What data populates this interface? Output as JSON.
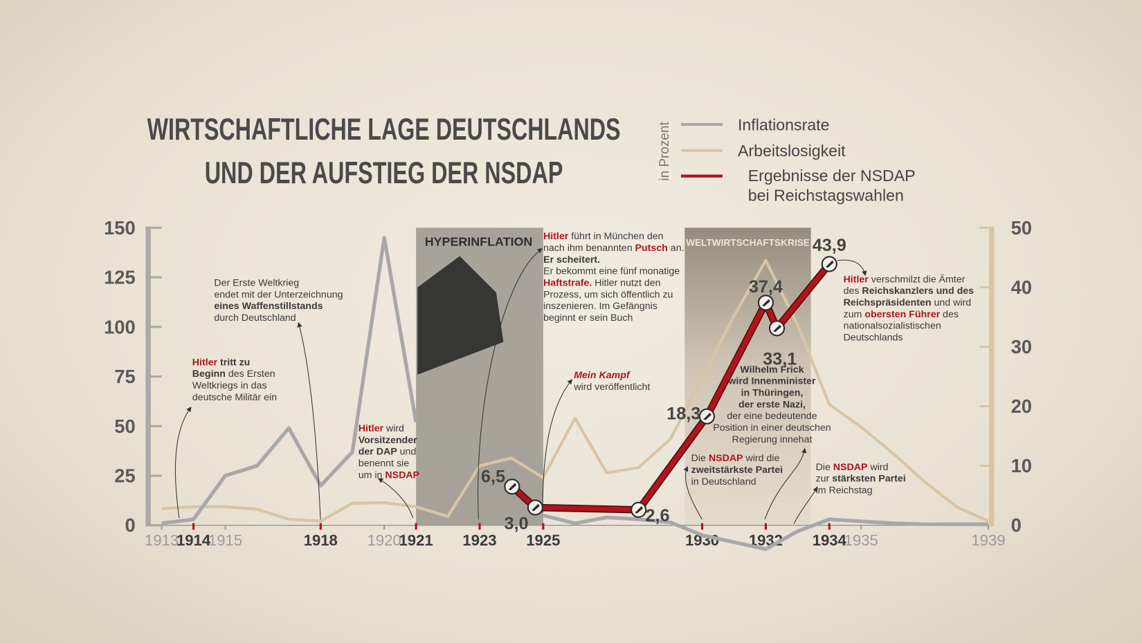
{
  "chart_data": {
    "type": "line",
    "title": [
      "WIRTSCHAFTLICHE LAGE DEUTSCHLANDS",
      "UND DER AUFSTIEG DER NSDAP"
    ],
    "unit_label": "in Prozent",
    "x": [
      1913,
      1914,
      1915,
      1916,
      1917,
      1918,
      1919,
      1920,
      1921,
      1922,
      1923,
      1924,
      1925,
      1926,
      1927,
      1928,
      1929,
      1930,
      1931,
      1932,
      1933,
      1934,
      1935,
      1936,
      1937,
      1938,
      1939
    ],
    "xlim": [
      1913,
      1939
    ],
    "xticks": [
      1913,
      1915,
      1920,
      1935,
      1939
    ],
    "event_ticks": [
      1914,
      1918,
      1921,
      1923,
      1925,
      1930,
      1932,
      1934
    ],
    "ylim": [
      0,
      150
    ],
    "yticks": [
      0,
      25,
      50,
      75,
      100,
      125,
      150
    ],
    "y2lim": [
      0,
      50
    ],
    "y2ticks": [
      0,
      10,
      20,
      30,
      40,
      50
    ],
    "series": [
      {
        "name": "Inflationsrate",
        "color": "#a8a8a8",
        "axis": "y",
        "values": [
          1,
          3,
          25,
          30,
          49,
          20,
          37,
          145,
          52,
          null,
          null,
          null,
          5,
          1,
          4,
          3,
          1.5,
          -5,
          -8.5,
          -12,
          -3,
          3,
          2,
          1,
          0.5,
          0.5,
          0.5
        ]
      },
      {
        "name": "Arbeitslosigkeit",
        "color": "#d9c4a6",
        "axis": "y2",
        "values": [
          2.8,
          3.1,
          3.1,
          2.7,
          1,
          0.7,
          3.7,
          3.8,
          3.1,
          1.5,
          10,
          11.3,
          8,
          18,
          8.8,
          9.7,
          14.5,
          24.7,
          35.2,
          44.5,
          33.7,
          20.3,
          16.5,
          12.1,
          7.3,
          3.1,
          0.7
        ]
      },
      {
        "name": "Ergebnisse der NSDAP bei Reichstagswahlen",
        "color": "#b0141f",
        "axis": "y2",
        "x": [
          1924.02,
          1924.75,
          1928.0,
          1930.15,
          1932.0,
          1932.35,
          1934.0
        ],
        "values": [
          6.5,
          3.0,
          2.6,
          18.3,
          37.4,
          33.1,
          43.9
        ],
        "value_labels": [
          "6,5",
          "3,0",
          "2,6",
          "18,3",
          "37,4",
          "33,1",
          "43,9"
        ]
      }
    ],
    "periods": [
      {
        "label": "HYPERINFLATION",
        "start": 1921,
        "end": 1925
      },
      {
        "label": "WELTWIRTSCHAFTSKRISE",
        "start": 1929.45,
        "end": 1933.42
      }
    ],
    "annotations": [
      {
        "lines": [
          [
            {
              "t": "Hitler",
              "s": "r"
            },
            {
              "t": " tritt zu",
              "s": "b"
            }
          ],
          [
            {
              "t": "Beginn",
              "s": "b"
            },
            {
              "t": " des Ersten",
              "s": "n"
            }
          ],
          [
            {
              "t": "Weltkriegs in das",
              "s": "n"
            }
          ],
          [
            {
              "t": "deutsche Militär ein",
              "s": "n"
            }
          ]
        ]
      },
      {
        "lines": [
          [
            {
              "t": "Der Erste Weltkrieg",
              "s": "n"
            }
          ],
          [
            {
              "t": "endet mit der Unterzeichnung",
              "s": "n"
            }
          ],
          [
            {
              "t": "eines Waffenstillstands",
              "s": "b"
            }
          ],
          [
            {
              "t": "durch Deutschland",
              "s": "n"
            }
          ]
        ]
      },
      {
        "lines": [
          [
            {
              "t": "Hitler",
              "s": "r"
            },
            {
              "t": " wird",
              "s": "n"
            }
          ],
          [
            {
              "t": "Vorsitzender",
              "s": "b"
            }
          ],
          [
            {
              "t": "der DAP",
              "s": "b"
            },
            {
              "t": " und",
              "s": "n"
            }
          ],
          [
            {
              "t": "benennt sie",
              "s": "n"
            }
          ],
          [
            {
              "t": "um in ",
              "s": "n"
            },
            {
              "t": "NSDAP",
              "s": "r"
            }
          ]
        ]
      },
      {
        "lines": [
          [
            {
              "t": "Hitler",
              "s": "r"
            },
            {
              "t": " führt in München den",
              "s": "n"
            }
          ],
          [
            {
              "t": "nach ihm benannten ",
              "s": "n"
            },
            {
              "t": "Putsch",
              "s": "r"
            },
            {
              "t": " an.",
              "s": "n"
            }
          ],
          [
            {
              "t": "Er scheitert.",
              "s": "b"
            }
          ],
          [
            {
              "t": "Er bekommt eine fünf monatige",
              "s": "n"
            }
          ],
          [
            {
              "t": "Haftstrafe.",
              "s": "r"
            },
            {
              "t": " Hitler nutzt den",
              "s": "n"
            }
          ],
          [
            {
              "t": "Prozess, um sich öffentlich zu",
              "s": "n"
            }
          ],
          [
            {
              "t": "inszenieren. Im Gefängnis",
              "s": "n"
            }
          ],
          [
            {
              "t": "beginnt er sein Buch",
              "s": "n"
            }
          ]
        ]
      },
      {
        "lines": [
          [
            {
              "t": "Mein Kampf",
              "s": "ri"
            }
          ],
          [
            {
              "t": "wird veröffentlicht",
              "s": "n"
            }
          ]
        ]
      },
      {
        "lines": [
          [
            {
              "t": "Wilhelm Frick",
              "s": "b"
            }
          ],
          [
            {
              "t": "wird Innenminister",
              "s": "b"
            }
          ],
          [
            {
              "t": "in Thüringen,",
              "s": "b"
            }
          ],
          [
            {
              "t": "der erste Nazi,",
              "s": "b"
            }
          ],
          [
            {
              "t": "der eine bedeutende",
              "s": "n"
            }
          ],
          [
            {
              "t": "Position in einer deutschen",
              "s": "n"
            }
          ],
          [
            {
              "t": "Regierung innehat",
              "s": "n"
            }
          ]
        ]
      },
      {
        "lines": [
          [
            {
              "t": "Die ",
              "s": "n"
            },
            {
              "t": "NSDAP",
              "s": "r"
            },
            {
              "t": " wird die",
              "s": "n"
            }
          ],
          [
            {
              "t": "zweitstärkste Partei",
              "s": "b"
            }
          ],
          [
            {
              "t": "in Deutschland",
              "s": "n"
            }
          ]
        ]
      },
      {
        "lines": [
          [
            {
              "t": "Die ",
              "s": "n"
            },
            {
              "t": "NSDAP",
              "s": "r"
            },
            {
              "t": " wird",
              "s": "n"
            }
          ],
          [
            {
              "t": "zur ",
              "s": "n"
            },
            {
              "t": "stärksten Partei",
              "s": "b"
            }
          ],
          [
            {
              "t": "im Reichstag",
              "s": "n"
            }
          ]
        ]
      },
      {
        "lines": [
          [
            {
              "t": "Hitler",
              "s": "r"
            },
            {
              "t": " verschmilzt die Ämter",
              "s": "n"
            }
          ],
          [
            {
              "t": "des ",
              "s": "n"
            },
            {
              "t": "Reichskanzlers und des",
              "s": "b"
            }
          ],
          [
            {
              "t": "Reichspräsidenten",
              "s": "b"
            },
            {
              "t": " und wird",
              "s": "n"
            }
          ],
          [
            {
              "t": "zum ",
              "s": "n"
            },
            {
              "t": "obersten Führer",
              "s": "r"
            },
            {
              "t": " des",
              "s": "n"
            }
          ],
          [
            {
              "t": "nationalsozialistischen",
              "s": "n"
            }
          ],
          [
            {
              "t": "Deutschlands",
              "s": "n"
            }
          ]
        ]
      }
    ]
  }
}
